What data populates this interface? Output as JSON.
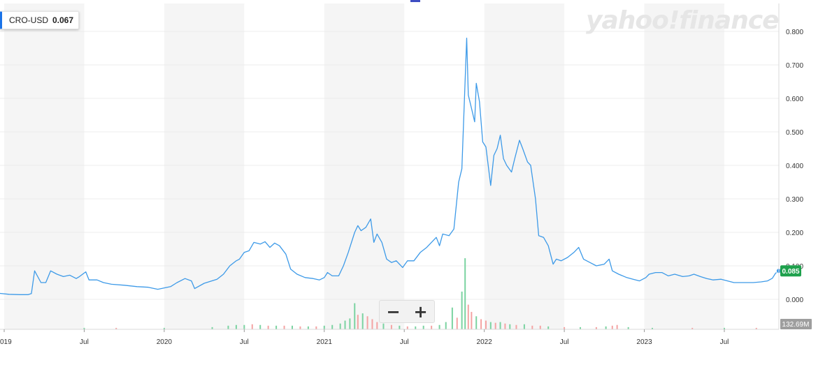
{
  "ticker": {
    "symbol": "CRO-USD",
    "price": "0.067"
  },
  "watermark": "yahoo!finance",
  "current_price_label": "0.085",
  "volume_max_label": "132.69M",
  "zoom": {
    "out_label": "−",
    "in_label": "+"
  },
  "colors": {
    "line": "#3d9ae8",
    "price_badge": "#1fa14d",
    "volume_up": "#7bd3a1",
    "volume_down": "#f4a3a3",
    "band": "#f5f5f5"
  },
  "chart_data": {
    "type": "line",
    "title": "",
    "xlabel": "",
    "ylabel": "",
    "ylim": [
      0,
      0.8
    ],
    "yticks": [
      "0.000",
      "0.100",
      "0.200",
      "0.300",
      "0.400",
      "0.500",
      "0.600",
      "0.700",
      "0.800"
    ],
    "xticks": [
      {
        "label": "019",
        "t": 2019.0
      },
      {
        "label": "Jul",
        "t": 2019.5
      },
      {
        "label": "2020",
        "t": 2020.0
      },
      {
        "label": "Jul",
        "t": 2020.5
      },
      {
        "label": "2021",
        "t": 2021.0
      },
      {
        "label": "Jul",
        "t": 2021.5
      },
      {
        "label": "2022",
        "t": 2022.0
      },
      {
        "label": "Jul",
        "t": 2022.5
      },
      {
        "label": "2023",
        "t": 2023.0
      },
      {
        "label": "Jul",
        "t": 2023.5
      }
    ],
    "x_range": [
      2018.97,
      2023.87
    ],
    "series": [
      {
        "points": [
          [
            2018.97,
            0.018
          ],
          [
            2019.03,
            0.015
          ],
          [
            2019.1,
            0.014
          ],
          [
            2019.15,
            0.014
          ],
          [
            2019.17,
            0.017
          ],
          [
            2019.19,
            0.085
          ],
          [
            2019.23,
            0.05
          ],
          [
            2019.26,
            0.05
          ],
          [
            2019.29,
            0.085
          ],
          [
            2019.33,
            0.075
          ],
          [
            2019.37,
            0.068
          ],
          [
            2019.41,
            0.072
          ],
          [
            2019.45,
            0.062
          ],
          [
            2019.47,
            0.068
          ],
          [
            2019.51,
            0.082
          ],
          [
            2019.53,
            0.058
          ],
          [
            2019.58,
            0.058
          ],
          [
            2019.62,
            0.05
          ],
          [
            2019.67,
            0.045
          ],
          [
            2019.75,
            0.042
          ],
          [
            2019.83,
            0.038
          ],
          [
            2019.9,
            0.036
          ],
          [
            2019.96,
            0.03
          ],
          [
            2020.04,
            0.038
          ],
          [
            2020.08,
            0.05
          ],
          [
            2020.13,
            0.062
          ],
          [
            2020.17,
            0.055
          ],
          [
            2020.19,
            0.032
          ],
          [
            2020.25,
            0.048
          ],
          [
            2020.33,
            0.06
          ],
          [
            2020.37,
            0.075
          ],
          [
            2020.41,
            0.1
          ],
          [
            2020.45,
            0.115
          ],
          [
            2020.47,
            0.12
          ],
          [
            2020.5,
            0.14
          ],
          [
            2020.53,
            0.145
          ],
          [
            2020.56,
            0.17
          ],
          [
            2020.6,
            0.165
          ],
          [
            2020.63,
            0.172
          ],
          [
            2020.66,
            0.155
          ],
          [
            2020.69,
            0.168
          ],
          [
            2020.72,
            0.16
          ],
          [
            2020.76,
            0.135
          ],
          [
            2020.79,
            0.09
          ],
          [
            2020.83,
            0.075
          ],
          [
            2020.88,
            0.065
          ],
          [
            2020.93,
            0.062
          ],
          [
            2020.97,
            0.058
          ],
          [
            2021.0,
            0.065
          ],
          [
            2021.02,
            0.08
          ],
          [
            2021.05,
            0.07
          ],
          [
            2021.09,
            0.07
          ],
          [
            2021.12,
            0.1
          ],
          [
            2021.15,
            0.14
          ],
          [
            2021.19,
            0.2
          ],
          [
            2021.21,
            0.22
          ],
          [
            2021.23,
            0.205
          ],
          [
            2021.26,
            0.215
          ],
          [
            2021.29,
            0.24
          ],
          [
            2021.31,
            0.17
          ],
          [
            2021.33,
            0.195
          ],
          [
            2021.36,
            0.17
          ],
          [
            2021.39,
            0.12
          ],
          [
            2021.42,
            0.11
          ],
          [
            2021.45,
            0.115
          ],
          [
            2021.49,
            0.095
          ],
          [
            2021.52,
            0.115
          ],
          [
            2021.56,
            0.115
          ],
          [
            2021.6,
            0.14
          ],
          [
            2021.64,
            0.155
          ],
          [
            2021.67,
            0.17
          ],
          [
            2021.7,
            0.185
          ],
          [
            2021.72,
            0.16
          ],
          [
            2021.74,
            0.195
          ],
          [
            2021.78,
            0.19
          ],
          [
            2021.81,
            0.21
          ],
          [
            2021.84,
            0.35
          ],
          [
            2021.86,
            0.39
          ],
          [
            2021.89,
            0.78
          ],
          [
            2021.9,
            0.61
          ],
          [
            2021.92,
            0.57
          ],
          [
            2021.94,
            0.53
          ],
          [
            2021.95,
            0.645
          ],
          [
            2021.97,
            0.59
          ],
          [
            2021.99,
            0.47
          ],
          [
            2022.01,
            0.455
          ],
          [
            2022.04,
            0.34
          ],
          [
            2022.06,
            0.43
          ],
          [
            2022.08,
            0.45
          ],
          [
            2022.1,
            0.49
          ],
          [
            2022.12,
            0.42
          ],
          [
            2022.14,
            0.4
          ],
          [
            2022.17,
            0.38
          ],
          [
            2022.19,
            0.42
          ],
          [
            2022.22,
            0.475
          ],
          [
            2022.24,
            0.45
          ],
          [
            2022.27,
            0.41
          ],
          [
            2022.29,
            0.4
          ],
          [
            2022.32,
            0.3
          ],
          [
            2022.34,
            0.19
          ],
          [
            2022.37,
            0.185
          ],
          [
            2022.4,
            0.16
          ],
          [
            2022.43,
            0.105
          ],
          [
            2022.45,
            0.12
          ],
          [
            2022.48,
            0.115
          ],
          [
            2022.52,
            0.125
          ],
          [
            2022.56,
            0.14
          ],
          [
            2022.59,
            0.155
          ],
          [
            2022.62,
            0.12
          ],
          [
            2022.66,
            0.11
          ],
          [
            2022.7,
            0.1
          ],
          [
            2022.75,
            0.105
          ],
          [
            2022.78,
            0.12
          ],
          [
            2022.8,
            0.085
          ],
          [
            2022.84,
            0.075
          ],
          [
            2022.89,
            0.065
          ],
          [
            2022.93,
            0.06
          ],
          [
            2022.97,
            0.055
          ],
          [
            2023.01,
            0.065
          ],
          [
            2023.03,
            0.075
          ],
          [
            2023.07,
            0.08
          ],
          [
            2023.11,
            0.08
          ],
          [
            2023.15,
            0.07
          ],
          [
            2023.19,
            0.075
          ],
          [
            2023.24,
            0.068
          ],
          [
            2023.28,
            0.07
          ],
          [
            2023.31,
            0.075
          ],
          [
            2023.35,
            0.068
          ],
          [
            2023.39,
            0.062
          ],
          [
            2023.43,
            0.058
          ],
          [
            2023.48,
            0.06
          ],
          [
            2023.52,
            0.055
          ],
          [
            2023.56,
            0.05
          ],
          [
            2023.62,
            0.05
          ],
          [
            2023.68,
            0.05
          ],
          [
            2023.73,
            0.052
          ],
          [
            2023.77,
            0.055
          ],
          [
            2023.8,
            0.063
          ],
          [
            2023.82,
            0.078
          ],
          [
            2023.84,
            0.085
          ]
        ]
      }
    ],
    "volume": [
      [
        2019.5,
        0.02,
        1
      ],
      [
        2019.7,
        0.02,
        0
      ],
      [
        2020.0,
        0.02,
        1
      ],
      [
        2020.3,
        0.03,
        1
      ],
      [
        2020.4,
        0.05,
        1
      ],
      [
        2020.45,
        0.06,
        1
      ],
      [
        2020.5,
        0.06,
        1
      ],
      [
        2020.55,
        0.07,
        0
      ],
      [
        2020.6,
        0.06,
        1
      ],
      [
        2020.65,
        0.05,
        0
      ],
      [
        2020.7,
        0.05,
        1
      ],
      [
        2020.75,
        0.05,
        0
      ],
      [
        2020.8,
        0.05,
        1
      ],
      [
        2020.85,
        0.04,
        0
      ],
      [
        2020.9,
        0.04,
        1
      ],
      [
        2020.95,
        0.04,
        0
      ],
      [
        2021.0,
        0.05,
        1
      ],
      [
        2021.05,
        0.06,
        1
      ],
      [
        2021.1,
        0.08,
        1
      ],
      [
        2021.13,
        0.12,
        1
      ],
      [
        2021.16,
        0.15,
        1
      ],
      [
        2021.19,
        0.36,
        1
      ],
      [
        2021.21,
        0.2,
        0
      ],
      [
        2021.24,
        0.22,
        1
      ],
      [
        2021.27,
        0.18,
        0
      ],
      [
        2021.3,
        0.14,
        0
      ],
      [
        2021.33,
        0.1,
        0
      ],
      [
        2021.37,
        0.08,
        1
      ],
      [
        2021.42,
        0.06,
        0
      ],
      [
        2021.47,
        0.05,
        1
      ],
      [
        2021.52,
        0.04,
        0
      ],
      [
        2021.57,
        0.04,
        1
      ],
      [
        2021.62,
        0.05,
        1
      ],
      [
        2021.67,
        0.05,
        0
      ],
      [
        2021.72,
        0.06,
        1
      ],
      [
        2021.76,
        0.1,
        1
      ],
      [
        2021.8,
        0.3,
        1
      ],
      [
        2021.83,
        0.16,
        0
      ],
      [
        2021.86,
        0.52,
        1
      ],
      [
        2021.88,
        0.98,
        1
      ],
      [
        2021.9,
        0.34,
        0
      ],
      [
        2021.92,
        0.24,
        0
      ],
      [
        2021.95,
        0.18,
        1
      ],
      [
        2021.98,
        0.14,
        0
      ],
      [
        2022.01,
        0.12,
        0
      ],
      [
        2022.04,
        0.1,
        1
      ],
      [
        2022.07,
        0.09,
        0
      ],
      [
        2022.1,
        0.1,
        1
      ],
      [
        2022.13,
        0.08,
        0
      ],
      [
        2022.16,
        0.07,
        1
      ],
      [
        2022.2,
        0.06,
        0
      ],
      [
        2022.25,
        0.07,
        1
      ],
      [
        2022.3,
        0.05,
        0
      ],
      [
        2022.35,
        0.05,
        0
      ],
      [
        2022.4,
        0.04,
        1
      ],
      [
        2022.5,
        0.03,
        0
      ],
      [
        2022.6,
        0.03,
        1
      ],
      [
        2022.7,
        0.03,
        0
      ],
      [
        2022.76,
        0.04,
        1
      ],
      [
        2022.8,
        0.05,
        0
      ],
      [
        2022.83,
        0.06,
        0
      ],
      [
        2022.9,
        0.03,
        1
      ],
      [
        2023.05,
        0.02,
        1
      ],
      [
        2023.3,
        0.02,
        0
      ],
      [
        2023.5,
        0.02,
        1
      ],
      [
        2023.7,
        0.02,
        0
      ]
    ]
  }
}
